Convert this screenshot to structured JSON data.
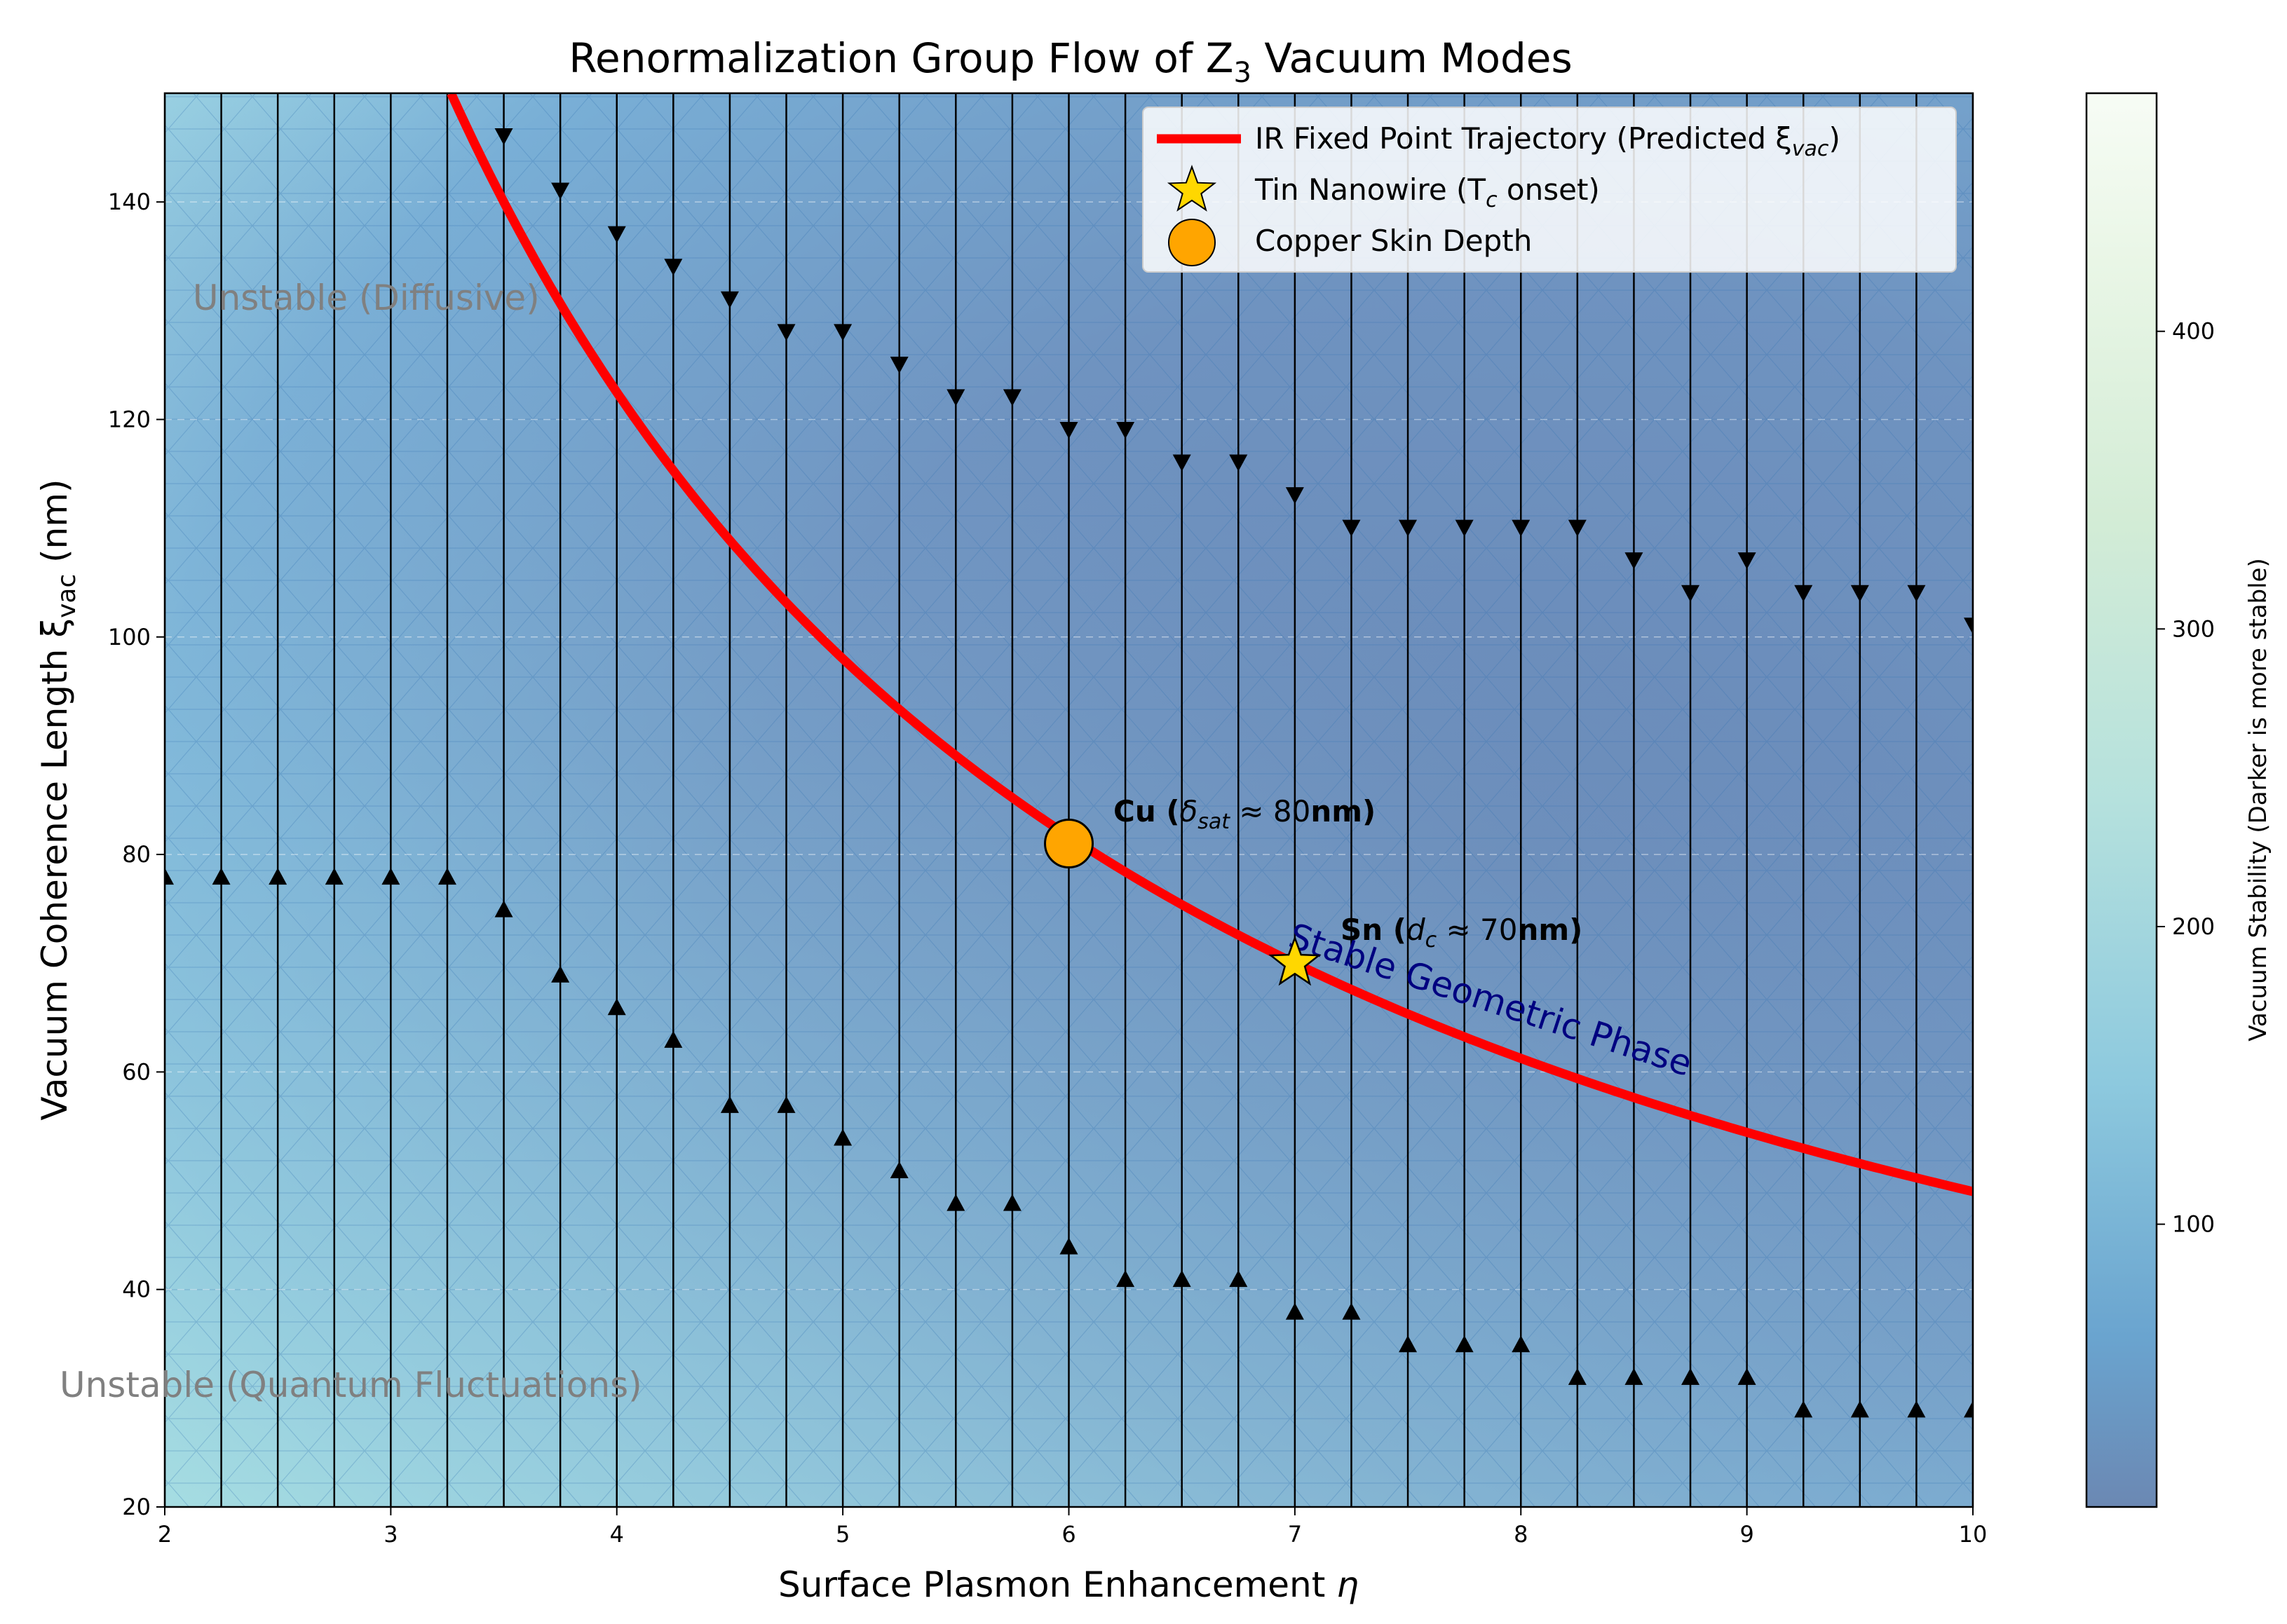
{
  "chart_data": {
    "type": "line",
    "title_main": "Renormalization Group Flow of Z",
    "title_sub": "3",
    "title_tail": " Vacuum Modes",
    "xlabel_main": "Surface Plasmon Enhancement ",
    "xlabel_sym": "η",
    "ylabel_main": "Vacuum Coherence Length ξ",
    "ylabel_sub": "vac",
    "ylabel_tail": " (nm)",
    "xlim": [
      2,
      10
    ],
    "ylim": [
      20,
      150
    ],
    "x_ticks": [
      2,
      3,
      4,
      5,
      6,
      7,
      8,
      9,
      10
    ],
    "y_ticks": [
      20,
      40,
      60,
      80,
      100,
      120,
      140
    ],
    "x_tick_labels": [
      "2",
      "3",
      "4",
      "5",
      "6",
      "7",
      "8",
      "9",
      "10"
    ],
    "y_tick_labels": [
      "20",
      "40",
      "60",
      "80",
      "100",
      "120",
      "140"
    ],
    "grid": "dashed",
    "legend_placement": "upper-right",
    "legend": {
      "line_label_main": "IR Fixed Point Trajectory (Predicted ξ",
      "line_label_sub": "vac",
      "line_label_tail": ")",
      "star_label_main": "Tin Nanowire (T",
      "star_label_sub": "c",
      "star_label_tail": " onset)",
      "circle_label": "Copper Skin Depth"
    },
    "series": [
      {
        "name": "IR Fixed Point Trajectory (Predicted ξvac)",
        "color": "#ff0000",
        "formula": "490/x",
        "x_range": [
          3.267,
          10
        ]
      }
    ],
    "points": [
      {
        "name": "Copper Skin Depth",
        "x": 6,
        "y": 81,
        "marker": "circle",
        "color": "#ffa500"
      },
      {
        "name": "Tin Nanowire (Tc onset)",
        "x": 7,
        "y": 70,
        "marker": "star",
        "color": "#ffd700"
      }
    ],
    "annotations": {
      "cu_bold": "Cu (",
      "cu_math": "δ",
      "cu_sub": "sat",
      "cu_approx": " ≈ 80",
      "cu_bold_tail": "nm)",
      "sn_bold": "Sn (",
      "sn_math": "d",
      "sn_sub": "c",
      "sn_approx": " ≈ 70",
      "sn_bold_tail": "nm)",
      "region_diffusive": "Unstable (Diffusive)",
      "region_quantum": "Unstable (Quantum Fluctuations)",
      "region_stable": "Stable Geometric Phase"
    },
    "flow_field": {
      "x_positions": [
        2,
        2.25,
        2.5,
        2.75,
        3,
        3.25,
        3.5,
        3.75,
        4,
        4.25,
        4.5,
        4.75,
        5,
        5.25,
        5.5,
        5.75,
        6,
        6.25,
        6.5,
        6.75,
        7,
        7.25,
        7.5,
        7.75,
        8,
        8.25,
        8.5,
        8.75,
        9,
        9.25,
        9.5,
        9.75,
        10
      ],
      "down_arrow_y": [
        null,
        null,
        null,
        null,
        null,
        null,
        146,
        141,
        137,
        134,
        131,
        128,
        128,
        125,
        122,
        122,
        119,
        119,
        116,
        116,
        113,
        110,
        110,
        110,
        110,
        110,
        107,
        104,
        107,
        104,
        104,
        104,
        101
      ],
      "up_arrow_y": [
        78,
        78,
        78,
        78,
        78,
        78,
        75,
        69,
        66,
        63,
        57,
        57,
        54,
        51,
        48,
        48,
        44,
        41,
        41,
        41,
        38,
        38,
        35,
        35,
        35,
        32,
        32,
        32,
        32,
        29,
        29,
        29,
        29
      ]
    },
    "colorbar": {
      "label": "Vacuum Stability (Darker is more stable)",
      "range": [
        5,
        480
      ],
      "ticks": [
        100,
        200,
        300,
        400
      ],
      "tick_labels": [
        "100",
        "200",
        "300",
        "400"
      ]
    }
  }
}
